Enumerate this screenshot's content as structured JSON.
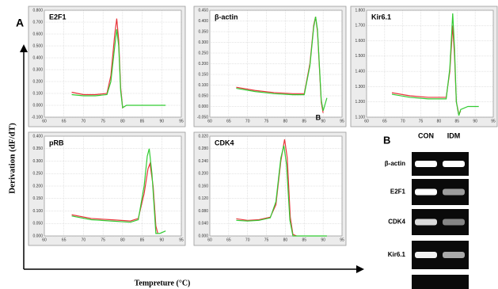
{
  "figure": {
    "panel_a": "A",
    "panel_b": "B",
    "y_axis_label": "Derivation (dF/dT)",
    "x_axis_label": "Tempreture (°C)"
  },
  "gel": {
    "columns": [
      "CON",
      "IDM"
    ],
    "rows": [
      "β-actin",
      "E2F1",
      "CDK4",
      "Kir6.1"
    ]
  },
  "chart_data": [
    {
      "type": "line",
      "title": "E2F1",
      "grid": true,
      "xlim": [
        60,
        95
      ],
      "xticks": [
        60,
        65,
        70,
        75,
        80,
        85,
        90,
        95
      ],
      "ylim": [
        -0.1,
        0.8
      ],
      "yticks": [
        {
          "value": -0.1,
          "label": "-0.100"
        },
        {
          "value": 0,
          "label": "0.000"
        },
        {
          "value": 0.1,
          "label": "0.100"
        },
        {
          "value": 0.2,
          "label": "0.200"
        },
        {
          "value": 0.3,
          "label": "0.300"
        },
        {
          "value": 0.4,
          "label": "0.400"
        },
        {
          "value": 0.5,
          "label": "0.500"
        },
        {
          "value": 0.6,
          "label": "0.600"
        },
        {
          "value": 0.7,
          "label": "0.700"
        },
        {
          "value": 0.8,
          "label": "0.800"
        }
      ],
      "series": [
        {
          "color": "#e8343a",
          "x": [
            67,
            70,
            73,
            76,
            77,
            78,
            78.5,
            79,
            79.5,
            80,
            80.5
          ],
          "values": [
            0.11,
            0.09,
            0.09,
            0.1,
            0.25,
            0.6,
            0.73,
            0.55,
            0.15,
            -0.02,
            -0.01
          ]
        },
        {
          "color": "#33cc33",
          "x": [
            67,
            70,
            73,
            76,
            77,
            78,
            78.5,
            79,
            79.5,
            80,
            81,
            85,
            91
          ],
          "values": [
            0.09,
            0.08,
            0.08,
            0.09,
            0.2,
            0.5,
            0.64,
            0.5,
            0.12,
            -0.02,
            0,
            0,
            0
          ]
        }
      ]
    },
    {
      "type": "line",
      "title": "β-actin",
      "annotation": "B",
      "grid": true,
      "xlim": [
        60,
        95
      ],
      "xticks": [
        60,
        65,
        70,
        75,
        80,
        85,
        90,
        95
      ],
      "ylim": [
        -0.05,
        0.45
      ],
      "yticks": [
        {
          "value": -0.05,
          "label": "-0.050"
        },
        {
          "value": 0,
          "label": "0.000"
        },
        {
          "value": 0.05,
          "label": "0.050"
        },
        {
          "value": 0.1,
          "label": "0.100"
        },
        {
          "value": 0.15,
          "label": "0.150"
        },
        {
          "value": 0.2,
          "label": "0.200"
        },
        {
          "value": 0.25,
          "label": "0.250"
        },
        {
          "value": 0.3,
          "label": "0.300"
        },
        {
          "value": 0.35,
          "label": "0.350"
        },
        {
          "value": 0.4,
          "label": "0.400"
        },
        {
          "value": 0.45,
          "label": "0.450"
        }
      ],
      "series": [
        {
          "color": "#e8343a",
          "x": [
            67,
            72,
            77,
            82,
            85,
            86.5,
            87.5,
            88,
            88.5,
            89.5,
            90
          ],
          "values": [
            0.09,
            0.075,
            0.065,
            0.06,
            0.06,
            0.2,
            0.38,
            0.42,
            0.35,
            0.02,
            -0.03
          ]
        },
        {
          "color": "#33cc33",
          "x": [
            67,
            72,
            77,
            82,
            85,
            86.5,
            87.5,
            88,
            88.5,
            89.5,
            90,
            91
          ],
          "values": [
            0.085,
            0.07,
            0.06,
            0.055,
            0.055,
            0.19,
            0.37,
            0.42,
            0.36,
            0.03,
            -0.02,
            0.04
          ]
        }
      ]
    },
    {
      "type": "line",
      "title": "Kir6.1",
      "grid": true,
      "xlim": [
        60,
        95
      ],
      "xticks": [
        60,
        65,
        70,
        75,
        80,
        85,
        90,
        95
      ],
      "ylim": [
        1.1,
        1.8
      ],
      "yticks": [
        {
          "value": 1.1,
          "label": "1.100"
        },
        {
          "value": 1.2,
          "label": "1.200"
        },
        {
          "value": 1.3,
          "label": "1.300"
        },
        {
          "value": 1.4,
          "label": "1.400"
        },
        {
          "value": 1.5,
          "label": "1.500"
        },
        {
          "value": 1.6,
          "label": "1.600"
        },
        {
          "value": 1.7,
          "label": "1.700"
        },
        {
          "value": 1.8,
          "label": "1.800"
        }
      ],
      "series": [
        {
          "color": "#e8343a",
          "x": [
            67,
            72,
            77,
            82,
            83,
            83.8,
            84.3,
            84.8,
            85.5,
            86
          ],
          "values": [
            1.26,
            1.24,
            1.23,
            1.23,
            1.4,
            1.7,
            1.5,
            1.2,
            1.12,
            1.14
          ]
        },
        {
          "color": "#33cc33",
          "x": [
            67,
            72,
            77,
            82,
            83,
            83.8,
            84.3,
            84.8,
            85.5,
            86,
            88,
            91
          ],
          "values": [
            1.25,
            1.23,
            1.22,
            1.22,
            1.42,
            1.78,
            1.55,
            1.2,
            1.11,
            1.15,
            1.17,
            1.17
          ]
        }
      ]
    },
    {
      "type": "line",
      "title": "pRB",
      "grid": true,
      "xlim": [
        60,
        95
      ],
      "xticks": [
        60,
        65,
        70,
        75,
        80,
        85,
        90,
        95
      ],
      "ylim": [
        0,
        0.4
      ],
      "yticks": [
        {
          "value": 0,
          "label": "0.000"
        },
        {
          "value": 0.05,
          "label": "0.050"
        },
        {
          "value": 0.1,
          "label": "0.100"
        },
        {
          "value": 0.15,
          "label": "0.150"
        },
        {
          "value": 0.2,
          "label": "0.200"
        },
        {
          "value": 0.25,
          "label": "0.250"
        },
        {
          "value": 0.3,
          "label": "0.300"
        },
        {
          "value": 0.35,
          "label": "0.350"
        },
        {
          "value": 0.4,
          "label": "0.400"
        }
      ],
      "series": [
        {
          "color": "#e8343a",
          "x": [
            67,
            72,
            77,
            82,
            84,
            85.5,
            86.5,
            87,
            87.8,
            88.5,
            89
          ],
          "values": [
            0.085,
            0.07,
            0.065,
            0.06,
            0.07,
            0.17,
            0.27,
            0.29,
            0.2,
            0.04,
            0.01
          ]
        },
        {
          "color": "#33cc33",
          "x": [
            67,
            72,
            77,
            82,
            84,
            85.5,
            86.3,
            86.8,
            87.5,
            88.5,
            89.5,
            91
          ],
          "values": [
            0.08,
            0.065,
            0.06,
            0.055,
            0.065,
            0.2,
            0.32,
            0.35,
            0.25,
            0.01,
            0.01,
            0.02
          ]
        }
      ]
    },
    {
      "type": "line",
      "title": "CDK4",
      "grid": true,
      "xlim": [
        60,
        95
      ],
      "xticks": [
        60,
        65,
        70,
        75,
        80,
        85,
        90,
        95
      ],
      "ylim": [
        0,
        0.32
      ],
      "yticks": [
        {
          "value": 0,
          "label": "0.000"
        },
        {
          "value": 0.04,
          "label": "0.040"
        },
        {
          "value": 0.08,
          "label": "0.080"
        },
        {
          "value": 0.12,
          "label": "0.120"
        },
        {
          "value": 0.16,
          "label": "0.160"
        },
        {
          "value": 0.2,
          "label": "0.200"
        },
        {
          "value": 0.24,
          "label": "0.240"
        },
        {
          "value": 0.28,
          "label": "0.280"
        },
        {
          "value": 0.32,
          "label": "0.320"
        }
      ],
      "series": [
        {
          "color": "#e8343a",
          "x": [
            67,
            70,
            73,
            76,
            77.5,
            78.8,
            79.8,
            80.5,
            81.3,
            82,
            83
          ],
          "values": [
            0.055,
            0.05,
            0.052,
            0.06,
            0.1,
            0.24,
            0.31,
            0.25,
            0.06,
            0.005,
            0
          ]
        },
        {
          "color": "#33cc33",
          "x": [
            67,
            70,
            73,
            76,
            77.5,
            78.8,
            79.6,
            80.3,
            81.2,
            82,
            85,
            91
          ],
          "values": [
            0.05,
            0.048,
            0.05,
            0.058,
            0.11,
            0.25,
            0.29,
            0.23,
            0.05,
            0,
            0,
            0
          ]
        }
      ]
    }
  ]
}
